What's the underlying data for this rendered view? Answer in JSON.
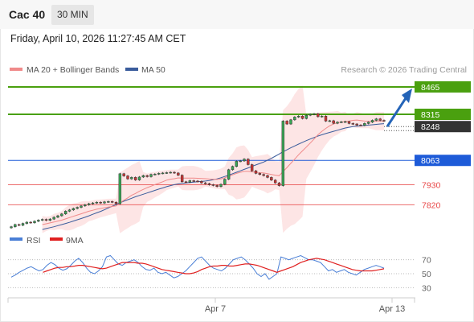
{
  "header": {
    "instrument": "Cac 40",
    "timeframe": "30 MIN"
  },
  "datetime": "Friday, April 10, 2026 11:27:45 AM CET",
  "legend": {
    "ma20": "MA 20 + Bollinger Bands",
    "ma50": "MA 50",
    "credit": "Research © 2026 Trading Central"
  },
  "rsi_legend": {
    "rsi": "RSI",
    "ma9": "9MA"
  },
  "colors": {
    "resistance": "#4aa00f",
    "support": "#e84848",
    "pivot": "#1e5bd8",
    "current_price": "#333333",
    "ma20": "#f08a8a",
    "ma50": "#3a5c9c",
    "bollinger_fill": "#fde0e0",
    "candle_up": "#3aa655",
    "candle_down": "#cc3333",
    "arrow": "#2464b8",
    "rsi": "#4a7fd6",
    "rsi_ma": "#e02020"
  },
  "chart_data": [
    {
      "type": "candlestick",
      "title": "Cac 40",
      "timeframe": "30 MIN",
      "x_ticks": [
        "Apr 7",
        "Apr 13"
      ],
      "levels": [
        {
          "name": "resistance2",
          "value": 8465,
          "label": "8465",
          "kind": "resistance"
        },
        {
          "name": "resistance1",
          "value": 8315,
          "label": "8315",
          "kind": "resistance"
        },
        {
          "name": "current",
          "value": 8248,
          "label": "8248",
          "kind": "current"
        },
        {
          "name": "pivot",
          "value": 8063,
          "label": "8063",
          "kind": "pivot"
        },
        {
          "name": "support1",
          "value": 7930,
          "label": "7930",
          "kind": "support"
        },
        {
          "name": "support2",
          "value": 7820,
          "label": "7820",
          "kind": "support"
        }
      ],
      "ylim": [
        7725,
        8500
      ],
      "close": [
        7700,
        7712,
        7708,
        7718,
        7725,
        7722,
        7730,
        7736,
        7740,
        7735,
        7742,
        7752,
        7760,
        7770,
        7785,
        7792,
        7800,
        7806,
        7814,
        7820,
        7826,
        7830,
        7834,
        7830,
        7836,
        7838,
        7834,
        7826,
        7990,
        7978,
        7962,
        7970,
        7956,
        7972,
        7980,
        7974,
        7986,
        7988,
        7992,
        7994,
        7996,
        7998,
        7994,
        7982,
        7946,
        7944,
        7952,
        7950,
        7948,
        7940,
        7936,
        7930,
        7926,
        7920,
        7932,
        7960,
        8012,
        8030,
        8058,
        8060,
        8070,
        8040,
        8006,
        7992,
        7986,
        7980,
        7970,
        7955,
        7940,
        7925,
        8278,
        8262,
        8285,
        8300,
        8305,
        8292,
        8310,
        8315,
        8318,
        8302,
        8305,
        8278,
        8280,
        8266,
        8272,
        8274,
        8275,
        8265,
        8262,
        8256,
        8255,
        8265,
        8272,
        8282,
        8290,
        8282,
        8278
      ],
      "ma20": [
        null,
        null,
        null,
        null,
        null,
        null,
        null,
        null,
        7712,
        7716,
        7721,
        7726,
        7731,
        7736,
        7743,
        7750,
        7757,
        7764,
        7771,
        7778,
        7785,
        7790,
        7796,
        7800,
        7804,
        7808,
        7811,
        7814,
        7830,
        7845,
        7858,
        7872,
        7882,
        7894,
        7904,
        7914,
        7922,
        7930,
        7938,
        7946,
        7955,
        7960,
        7963,
        7967,
        7966,
        7966,
        7966,
        7966,
        7965,
        7964,
        7963,
        7961,
        7960,
        7959,
        7962,
        7968,
        7976,
        7984,
        7992,
        7998,
        8003,
        8003,
        8000,
        7998,
        7996,
        7994,
        7990,
        7986,
        7982,
        7979,
        8002,
        8024,
        8047,
        8070,
        8094,
        8115,
        8136,
        8158,
        8180,
        8203,
        8222,
        8238,
        8252,
        8262,
        8269,
        8272,
        8276,
        8278,
        8282,
        8284,
        8281,
        8278,
        8276,
        8276,
        8278,
        8278,
        8278
      ],
      "ma50": [
        null,
        null,
        null,
        null,
        null,
        null,
        null,
        null,
        7685,
        7690,
        7695,
        7700,
        7706,
        7712,
        7718,
        7724,
        7731,
        7738,
        7745,
        7752,
        7760,
        7768,
        7776,
        7784,
        7793,
        7803,
        7812,
        7822,
        7831,
        7840,
        7848,
        7856,
        7864,
        7871,
        7878,
        7885,
        7892,
        7899,
        7906,
        7912,
        7919,
        7925,
        7930,
        7934,
        7937,
        7940,
        7942,
        7944,
        7946,
        7948,
        7950,
        7953,
        7957,
        7962,
        7968,
        7975,
        7982,
        7990,
        7998,
        8006,
        8014,
        8022,
        8030,
        8038,
        8046,
        8054,
        8064,
        8074,
        8086,
        8098,
        8110,
        8121,
        8132,
        8142,
        8152,
        8162,
        8171,
        8180,
        8188,
        8196,
        8203,
        8210,
        8216,
        8222,
        8228,
        8234,
        8240,
        8244,
        8248,
        8250,
        8252,
        8254,
        8256,
        8258,
        8260,
        8262,
        8264
      ],
      "projection": {
        "from": 8248,
        "to": 8465
      }
    },
    {
      "type": "line",
      "title": "RSI",
      "ylim": [
        20,
        80
      ],
      "y_ticks": [
        70,
        50,
        30
      ],
      "series": [
        {
          "name": "RSI",
          "values": [
            45,
            48,
            52,
            55,
            58,
            60,
            57,
            54,
            56,
            62,
            66,
            63,
            58,
            55,
            57,
            62,
            68,
            72,
            66,
            58,
            52,
            50,
            54,
            60,
            74,
            76,
            70,
            64,
            62,
            66,
            68,
            70,
            66,
            60,
            56,
            55,
            58,
            52,
            50,
            52,
            48,
            44,
            46,
            50,
            54,
            60,
            66,
            72,
            74,
            68,
            62,
            58,
            56,
            54,
            58,
            64,
            70,
            72,
            74,
            70,
            64,
            58,
            50,
            46,
            50,
            42,
            46,
            50,
            74,
            72,
            70,
            72,
            74,
            76,
            73,
            70,
            70,
            68,
            66,
            60,
            54,
            56,
            52,
            54,
            56,
            52,
            50,
            48,
            52,
            56,
            58,
            60,
            62,
            60,
            58
          ]
        },
        {
          "name": "9MA",
          "values": [
            null,
            null,
            null,
            null,
            null,
            null,
            null,
            null,
            52,
            54,
            56,
            58,
            59,
            59,
            60,
            60,
            61,
            62,
            62,
            61,
            60,
            59,
            58,
            57,
            58,
            60,
            62,
            64,
            66,
            66,
            66,
            66,
            65,
            65,
            64,
            62,
            60,
            58,
            56,
            55,
            54,
            53,
            52,
            51,
            50,
            50,
            51,
            53,
            56,
            58,
            60,
            61,
            61,
            62,
            62,
            61,
            61,
            62,
            63,
            64,
            64,
            63,
            62,
            60,
            58,
            56,
            54,
            52,
            54,
            56,
            58,
            60,
            63,
            66,
            68,
            70,
            71,
            72,
            71,
            70,
            68,
            66,
            64,
            62,
            60,
            58,
            56,
            55,
            54,
            54,
            54,
            54,
            55,
            56,
            57
          ]
        }
      ]
    }
  ]
}
